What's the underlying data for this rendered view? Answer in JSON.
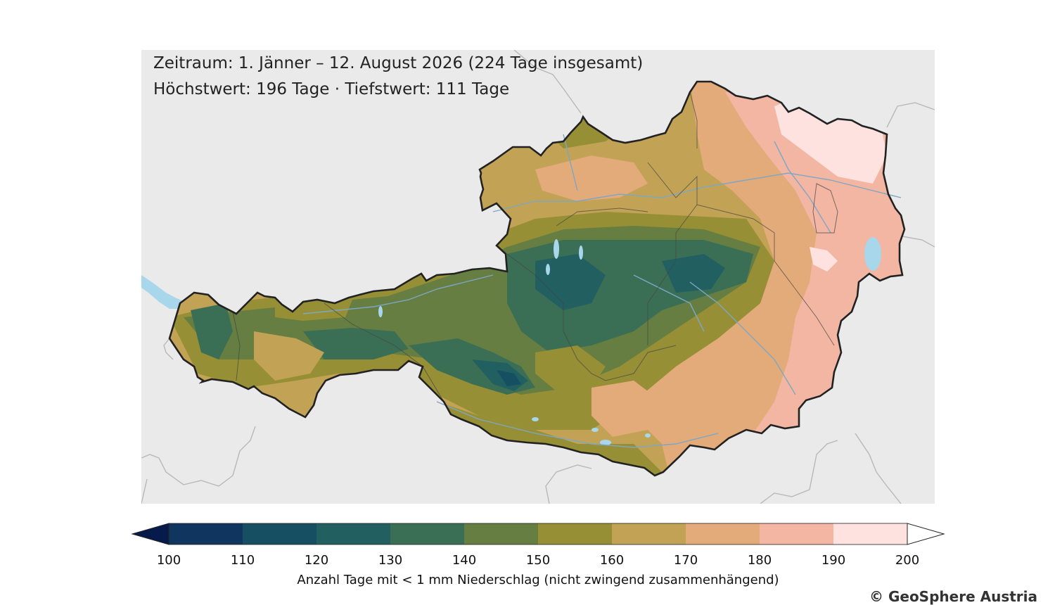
{
  "info": {
    "line1": "Zeitraum: 1. Jänner – 12. August 2026 (224 Tage insgesamt)",
    "line2": "Höchstwert: 196 Tage · Tiefstwert: 111 Tage"
  },
  "legend": {
    "ticks": [
      "100",
      "110",
      "120",
      "130",
      "140",
      "150",
      "160",
      "170",
      "180",
      "190",
      "200"
    ],
    "bins": [
      {
        "range": "100-110",
        "color": "#10355f"
      },
      {
        "range": "110-120",
        "color": "#164e62"
      },
      {
        "range": "120-130",
        "color": "#215f60"
      },
      {
        "range": "130-140",
        "color": "#3b6f55"
      },
      {
        "range": "140-150",
        "color": "#667e42"
      },
      {
        "range": "150-160",
        "color": "#968f35"
      },
      {
        "range": "160-170",
        "color": "#c2a255"
      },
      {
        "range": "170-180",
        "color": "#e3aa7a"
      },
      {
        "range": "180-190",
        "color": "#f2b6a2"
      },
      {
        "range": "190-200",
        "color": "#fde2df"
      }
    ],
    "under_color": "#071a4c",
    "over_color": "#ffffff",
    "caption": "Anzahl Tage mit < 1 mm Niederschlag (nicht zwingend zusammenhängend)"
  },
  "credit": "© GeoSphere Austria",
  "map": {
    "background": "#eaeaea",
    "lake_color": "#a8d6ea",
    "border_color": "#222222"
  }
}
